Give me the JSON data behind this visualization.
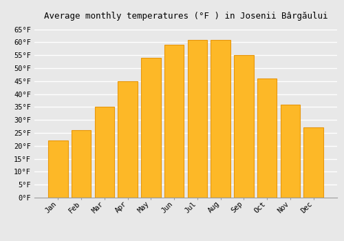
{
  "title": "Average monthly temperatures (°F ) in Josenii Bârgăului",
  "months": [
    "Jan",
    "Feb",
    "Mar",
    "Apr",
    "May",
    "Jun",
    "Jul",
    "Aug",
    "Sep",
    "Oct",
    "Nov",
    "Dec"
  ],
  "values": [
    22,
    26,
    35,
    45,
    54,
    59,
    61,
    61,
    55,
    46,
    36,
    27
  ],
  "bar_color": "#FDB827",
  "bar_edge_color": "#E8960A",
  "background_color": "#e8e8e8",
  "grid_color": "#ffffff",
  "ylim": [
    0,
    67
  ],
  "yticks": [
    0,
    5,
    10,
    15,
    20,
    25,
    30,
    35,
    40,
    45,
    50,
    55,
    60,
    65
  ],
  "ylabel_suffix": "°F",
  "title_fontsize": 9,
  "tick_fontsize": 7.5,
  "font_family": "monospace"
}
